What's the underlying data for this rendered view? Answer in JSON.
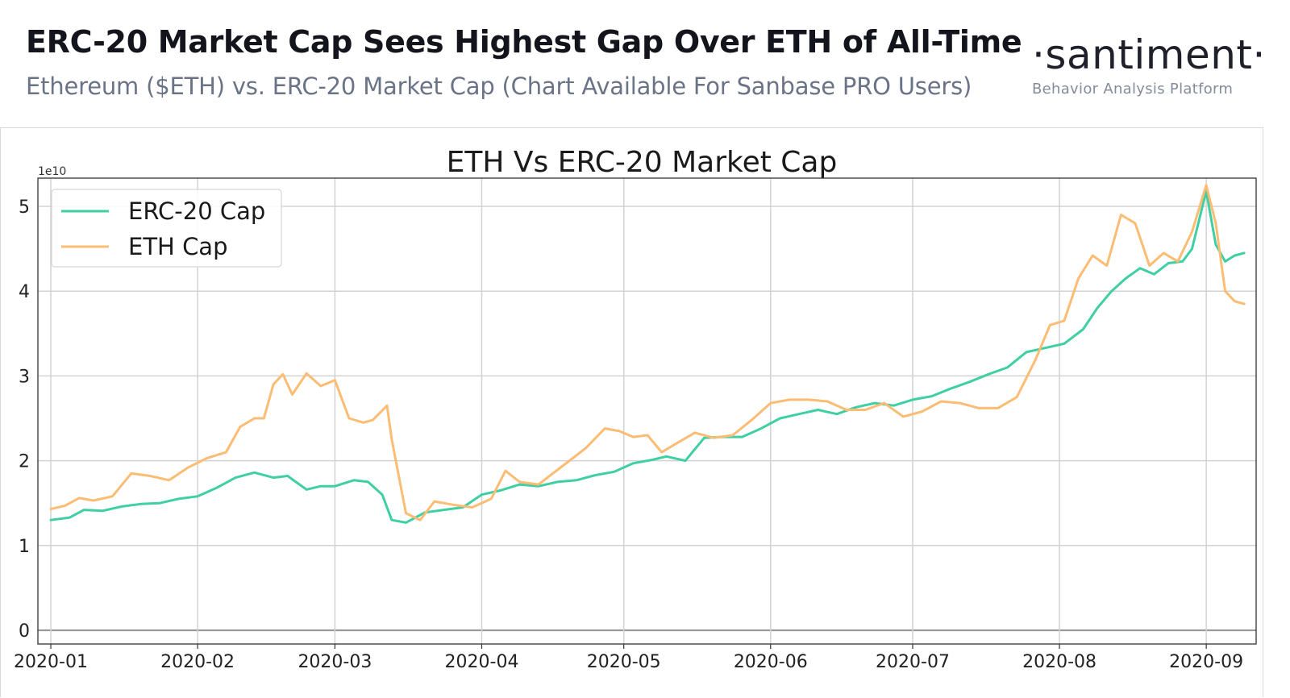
{
  "header": {
    "headline": "ERC-20 Market Cap Sees Highest Gap Over ETH of All-Time",
    "subheadline": "Ethereum ($ETH) vs. ERC-20 Market Cap (Chart Available For Sanbase PRO Users)",
    "brand_name": "·santiment·",
    "brand_tagline": "Behavior Analysis Platform"
  },
  "chart_data": {
    "type": "line",
    "title": "ETH Vs ERC-20 Market Cap",
    "xlabel": "",
    "ylabel": "",
    "y_multiplier_label": "1e10",
    "ylim": [
      0,
      5.3
    ],
    "yticks": [
      0,
      1,
      2,
      3,
      4,
      5
    ],
    "x_range": [
      "2020-01-01",
      "2020-09-10"
    ],
    "xticks": [
      "2020-01",
      "2020-02",
      "2020-03",
      "2020-04",
      "2020-05",
      "2020-06",
      "2020-07",
      "2020-08",
      "2020-09"
    ],
    "grid": true,
    "legend_position": "top-left",
    "series": [
      {
        "name": "ERC-20 Cap",
        "color": "#3fcfa3",
        "x": [
          "2020-01-01",
          "2020-01-05",
          "2020-01-08",
          "2020-01-12",
          "2020-01-16",
          "2020-01-20",
          "2020-01-24",
          "2020-01-28",
          "2020-02-01",
          "2020-02-05",
          "2020-02-09",
          "2020-02-13",
          "2020-02-17",
          "2020-02-20",
          "2020-02-24",
          "2020-02-27",
          "2020-03-01",
          "2020-03-05",
          "2020-03-08",
          "2020-03-11",
          "2020-03-13",
          "2020-03-16",
          "2020-03-20",
          "2020-03-24",
          "2020-03-28",
          "2020-04-01",
          "2020-04-05",
          "2020-04-09",
          "2020-04-13",
          "2020-04-17",
          "2020-04-21",
          "2020-04-25",
          "2020-04-29",
          "2020-05-03",
          "2020-05-07",
          "2020-05-10",
          "2020-05-14",
          "2020-05-18",
          "2020-05-22",
          "2020-05-26",
          "2020-05-30",
          "2020-06-03",
          "2020-06-07",
          "2020-06-11",
          "2020-06-15",
          "2020-06-19",
          "2020-06-23",
          "2020-06-27",
          "2020-07-01",
          "2020-07-05",
          "2020-07-09",
          "2020-07-13",
          "2020-07-17",
          "2020-07-21",
          "2020-07-25",
          "2020-07-29",
          "2020-08-02",
          "2020-08-06",
          "2020-08-09",
          "2020-08-12",
          "2020-08-15",
          "2020-08-18",
          "2020-08-21",
          "2020-08-24",
          "2020-08-27",
          "2020-08-29",
          "2020-09-01",
          "2020-09-03",
          "2020-09-05",
          "2020-09-07",
          "2020-09-09"
        ],
        "values": [
          1.3,
          1.33,
          1.42,
          1.41,
          1.46,
          1.49,
          1.5,
          1.55,
          1.58,
          1.68,
          1.8,
          1.86,
          1.8,
          1.82,
          1.66,
          1.7,
          1.7,
          1.77,
          1.75,
          1.6,
          1.3,
          1.27,
          1.39,
          1.42,
          1.45,
          1.6,
          1.65,
          1.72,
          1.7,
          1.75,
          1.77,
          1.83,
          1.87,
          1.97,
          2.01,
          2.05,
          2.0,
          2.27,
          2.28,
          2.28,
          2.38,
          2.5,
          2.55,
          2.6,
          2.55,
          2.63,
          2.68,
          2.65,
          2.72,
          2.76,
          2.85,
          2.93,
          3.02,
          3.1,
          3.28,
          3.33,
          3.38,
          3.55,
          3.8,
          4.0,
          4.15,
          4.27,
          4.2,
          4.33,
          4.35,
          4.5,
          5.18,
          4.55,
          4.35,
          4.42,
          4.45
        ]
      },
      {
        "name": "ETH Cap",
        "color": "#fbbc74",
        "x": [
          "2020-01-01",
          "2020-01-04",
          "2020-01-07",
          "2020-01-10",
          "2020-01-14",
          "2020-01-18",
          "2020-01-22",
          "2020-01-26",
          "2020-01-30",
          "2020-02-03",
          "2020-02-07",
          "2020-02-10",
          "2020-02-13",
          "2020-02-15",
          "2020-02-17",
          "2020-02-19",
          "2020-02-21",
          "2020-02-24",
          "2020-02-27",
          "2020-03-01",
          "2020-03-04",
          "2020-03-07",
          "2020-03-09",
          "2020-03-12",
          "2020-03-13",
          "2020-03-16",
          "2020-03-19",
          "2020-03-22",
          "2020-03-26",
          "2020-03-30",
          "2020-04-03",
          "2020-04-06",
          "2020-04-09",
          "2020-04-13",
          "2020-04-16",
          "2020-04-20",
          "2020-04-23",
          "2020-04-27",
          "2020-04-30",
          "2020-05-03",
          "2020-05-06",
          "2020-05-09",
          "2020-05-12",
          "2020-05-16",
          "2020-05-20",
          "2020-05-24",
          "2020-05-28",
          "2020-06-01",
          "2020-06-05",
          "2020-06-09",
          "2020-06-13",
          "2020-06-17",
          "2020-06-21",
          "2020-06-25",
          "2020-06-29",
          "2020-07-03",
          "2020-07-07",
          "2020-07-11",
          "2020-07-15",
          "2020-07-19",
          "2020-07-23",
          "2020-07-27",
          "2020-07-30",
          "2020-08-02",
          "2020-08-05",
          "2020-08-08",
          "2020-08-11",
          "2020-08-14",
          "2020-08-17",
          "2020-08-20",
          "2020-08-23",
          "2020-08-26",
          "2020-08-29",
          "2020-09-01",
          "2020-09-03",
          "2020-09-05",
          "2020-09-07",
          "2020-09-09"
        ],
        "values": [
          1.43,
          1.47,
          1.56,
          1.53,
          1.58,
          1.85,
          1.82,
          1.77,
          1.92,
          2.03,
          2.1,
          2.4,
          2.5,
          2.5,
          2.9,
          3.02,
          2.78,
          3.03,
          2.88,
          2.95,
          2.5,
          2.45,
          2.48,
          2.65,
          2.25,
          1.38,
          1.3,
          1.52,
          1.48,
          1.45,
          1.55,
          1.88,
          1.75,
          1.72,
          1.85,
          2.02,
          2.15,
          2.38,
          2.35,
          2.28,
          2.3,
          2.1,
          2.2,
          2.33,
          2.27,
          2.3,
          2.48,
          2.68,
          2.72,
          2.72,
          2.7,
          2.6,
          2.6,
          2.68,
          2.52,
          2.58,
          2.7,
          2.68,
          2.62,
          2.62,
          2.75,
          3.2,
          3.6,
          3.65,
          4.15,
          4.42,
          4.3,
          4.9,
          4.8,
          4.3,
          4.45,
          4.35,
          4.7,
          5.25,
          4.8,
          4.0,
          3.88,
          3.85
        ]
      }
    ]
  }
}
